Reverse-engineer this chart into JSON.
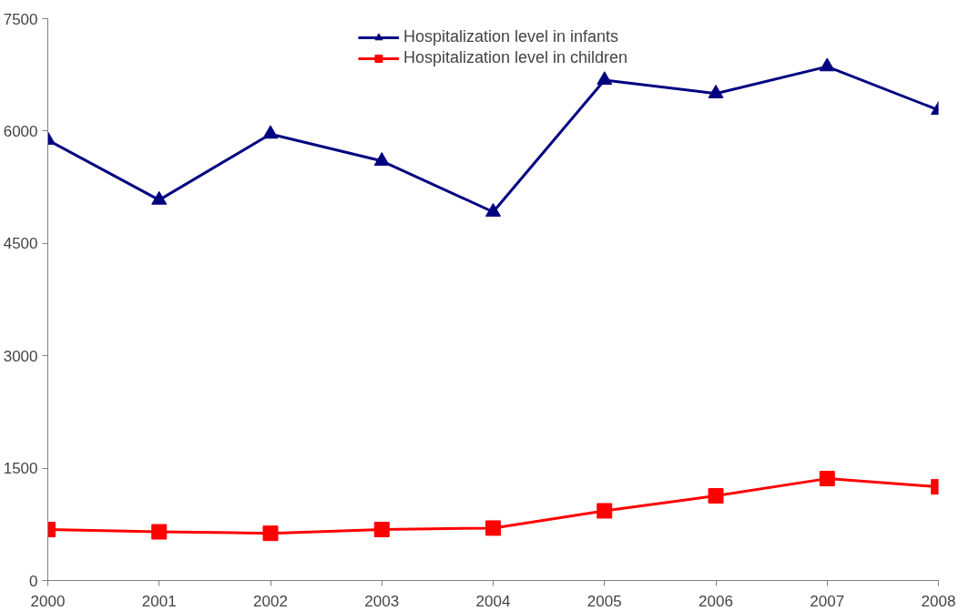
{
  "chart_data": {
    "type": "line",
    "x": [
      2000,
      2001,
      2002,
      2003,
      2004,
      2005,
      2006,
      2007,
      2008
    ],
    "xlim": [
      2000,
      2008
    ],
    "xticks": [
      2000,
      2001,
      2002,
      2003,
      2004,
      2005,
      2006,
      2007,
      2008
    ],
    "ylim": [
      0,
      7500
    ],
    "yticks": [
      0,
      1500,
      3000,
      4500,
      6000,
      7500
    ],
    "grid": false,
    "legend": "top",
    "line_style": "solid",
    "series": [
      {
        "name": "Hospitalization level in infants",
        "color": "#000080",
        "marker": "triangle",
        "values": [
          5880,
          5080,
          5960,
          5600,
          4920,
          6680,
          6500,
          6860,
          6280
        ]
      },
      {
        "name": "Hospitalization level in children",
        "color": "#ff0000",
        "marker": "square",
        "values": [
          680,
          650,
          630,
          680,
          700,
          930,
          1130,
          1360,
          1250
        ]
      }
    ]
  }
}
